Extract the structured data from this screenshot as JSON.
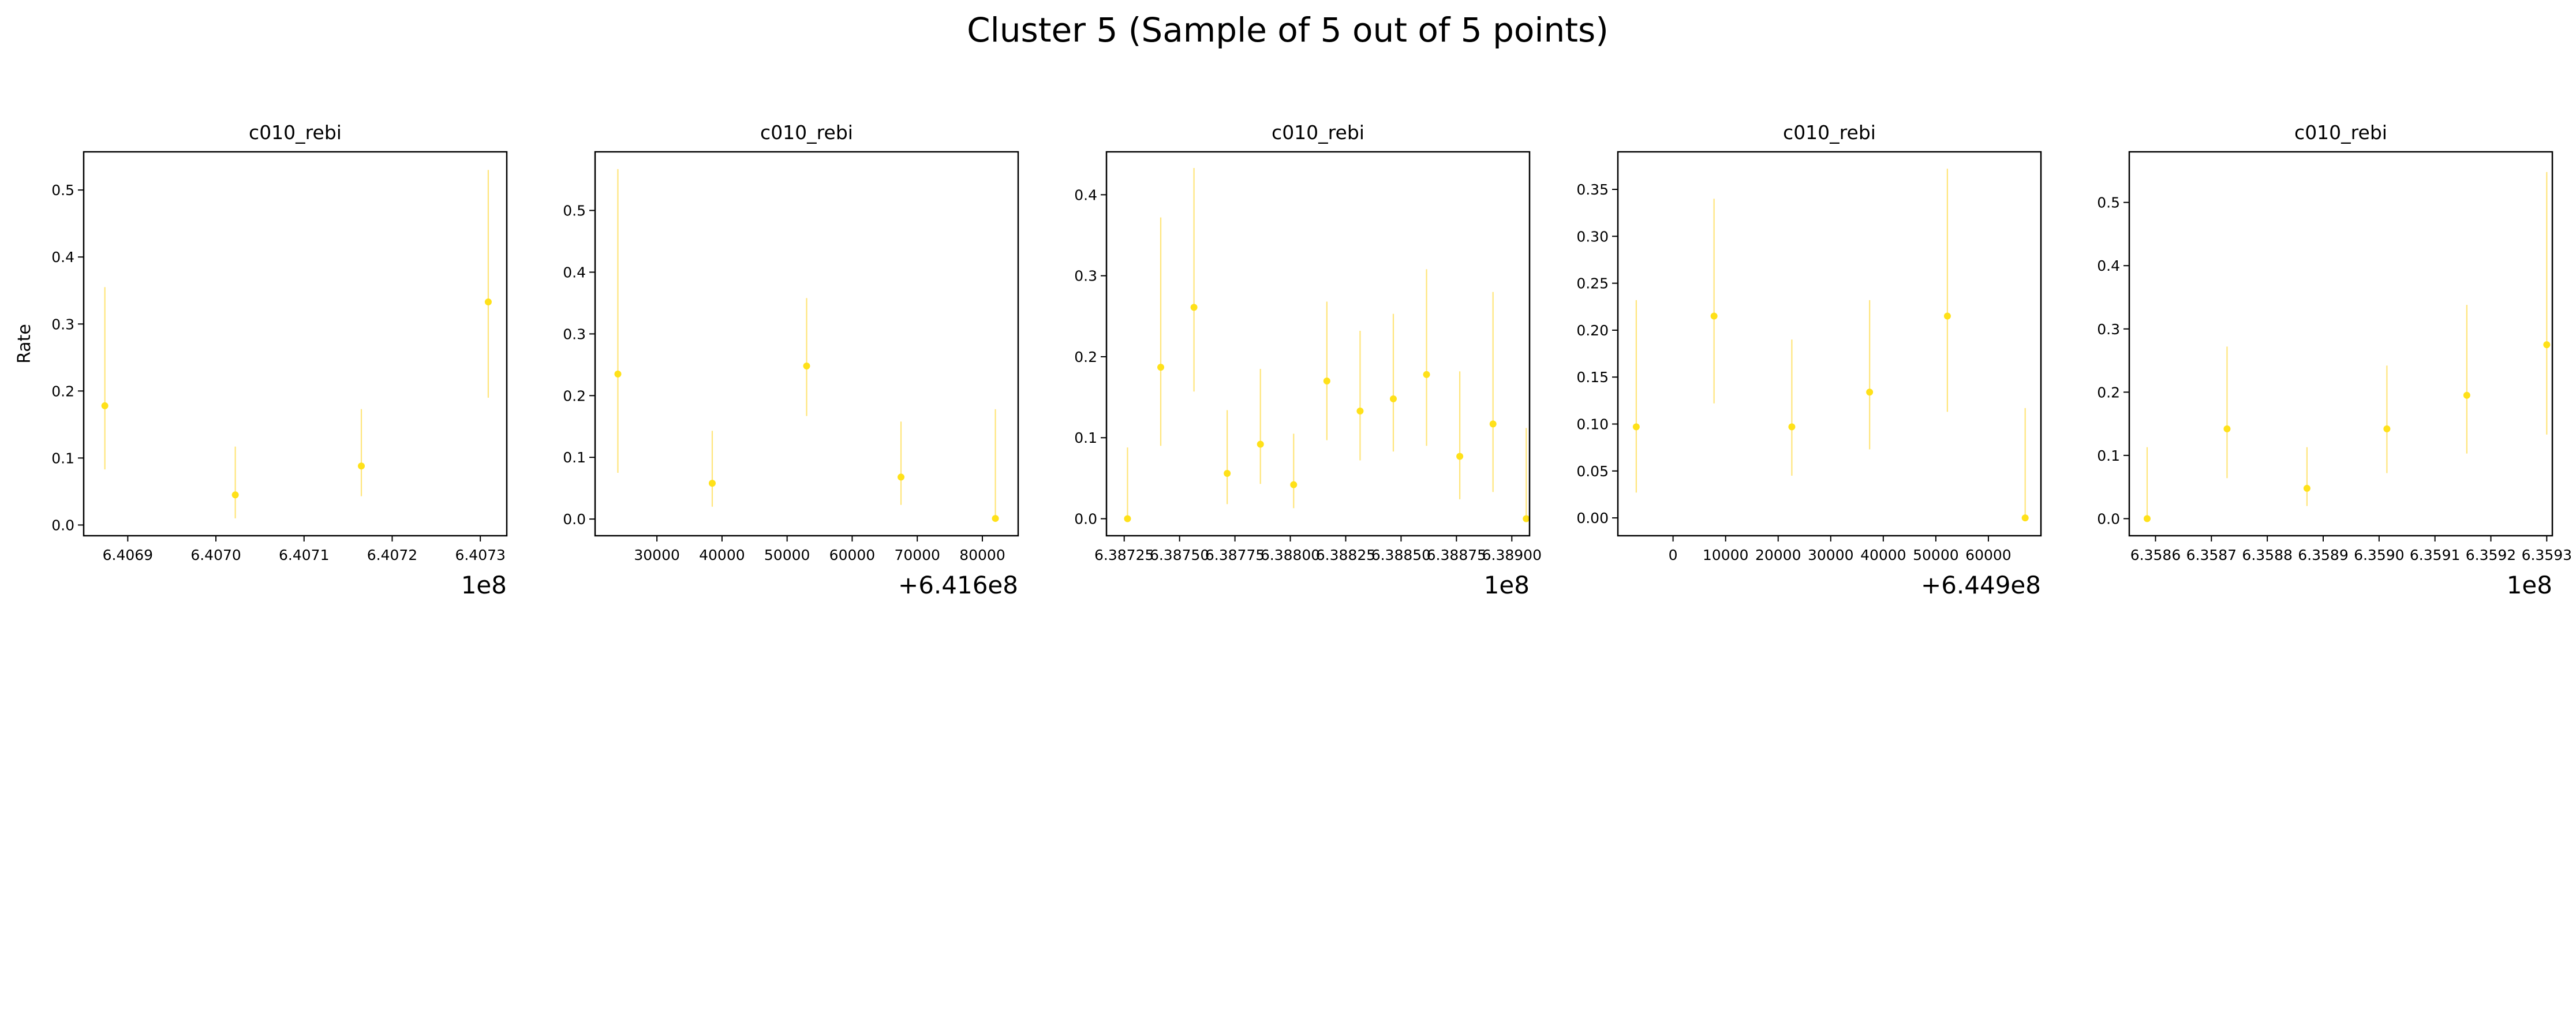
{
  "figure": {
    "title": "Cluster 5 (Sample of 5 out of 5 points)"
  },
  "colors": {
    "marker": "#ffe119",
    "errorbar": "#ffe57a",
    "axis": "#000000"
  },
  "chart_data": [
    {
      "type": "scatter",
      "title": "c010_rebi",
      "ylabel": "Rate",
      "offset_text": "1e8",
      "xlim": [
        6.40685,
        6.40733
      ],
      "ylim": [
        -0.016,
        0.557
      ],
      "xticks": [
        {
          "v": 6.4069,
          "label": "6.4069"
        },
        {
          "v": 6.407,
          "label": "6.4070"
        },
        {
          "v": 6.4071,
          "label": "6.4071"
        },
        {
          "v": 6.4072,
          "label": "6.4072"
        },
        {
          "v": 6.4073,
          "label": "6.4073"
        }
      ],
      "yticks": [
        {
          "v": 0.0,
          "label": "0.0"
        },
        {
          "v": 0.1,
          "label": "0.1"
        },
        {
          "v": 0.2,
          "label": "0.2"
        },
        {
          "v": 0.3,
          "label": "0.3"
        },
        {
          "v": 0.4,
          "label": "0.4"
        },
        {
          "v": 0.5,
          "label": "0.5"
        }
      ],
      "points": [
        {
          "x": 6.406874,
          "y": 0.178,
          "lo": 0.083,
          "hi": 0.355
        },
        {
          "x": 6.407022,
          "y": 0.045,
          "lo": 0.01,
          "hi": 0.117
        },
        {
          "x": 6.407165,
          "y": 0.088,
          "lo": 0.043,
          "hi": 0.173
        },
        {
          "x": 6.407309,
          "y": 0.333,
          "lo": 0.19,
          "hi": 0.53
        }
      ]
    },
    {
      "type": "scatter",
      "title": "c010_rebi",
      "ylabel": "",
      "offset_text": "+6.416e8",
      "xlim": [
        20500,
        85500
      ],
      "ylim": [
        -0.027,
        0.595
      ],
      "xticks": [
        {
          "v": 30000,
          "label": "30000"
        },
        {
          "v": 40000,
          "label": "40000"
        },
        {
          "v": 50000,
          "label": "50000"
        },
        {
          "v": 60000,
          "label": "60000"
        },
        {
          "v": 70000,
          "label": "70000"
        },
        {
          "v": 80000,
          "label": "80000"
        }
      ],
      "yticks": [
        {
          "v": 0.0,
          "label": "0.0"
        },
        {
          "v": 0.1,
          "label": "0.1"
        },
        {
          "v": 0.2,
          "label": "0.2"
        },
        {
          "v": 0.3,
          "label": "0.3"
        },
        {
          "v": 0.4,
          "label": "0.4"
        },
        {
          "v": 0.5,
          "label": "0.5"
        }
      ],
      "points": [
        {
          "x": 24000,
          "y": 0.235,
          "lo": 0.075,
          "hi": 0.567
        },
        {
          "x": 38500,
          "y": 0.058,
          "lo": 0.02,
          "hi": 0.143
        },
        {
          "x": 53000,
          "y": 0.248,
          "lo": 0.167,
          "hi": 0.358
        },
        {
          "x": 67500,
          "y": 0.068,
          "lo": 0.023,
          "hi": 0.158
        },
        {
          "x": 82000,
          "y": 0.001,
          "lo": 0.0,
          "hi": 0.178
        }
      ]
    },
    {
      "type": "scatter",
      "title": "c010_rebi",
      "ylabel": "",
      "offset_text": "1e8",
      "xlim": [
        6.38717,
        6.38908
      ],
      "ylim": [
        -0.021,
        0.453
      ],
      "xticks": [
        {
          "v": 6.38725,
          "label": "6.38725"
        },
        {
          "v": 6.3875,
          "label": "6.38750"
        },
        {
          "v": 6.38775,
          "label": "6.38775"
        },
        {
          "v": 6.388,
          "label": "6.38800"
        },
        {
          "v": 6.38825,
          "label": "6.38825"
        },
        {
          "v": 6.3885,
          "label": "6.38850"
        },
        {
          "v": 6.38875,
          "label": "6.38875"
        },
        {
          "v": 6.389,
          "label": "6.38900"
        }
      ],
      "yticks": [
        {
          "v": 0.0,
          "label": "0.0"
        },
        {
          "v": 0.1,
          "label": "0.1"
        },
        {
          "v": 0.2,
          "label": "0.2"
        },
        {
          "v": 0.3,
          "label": "0.3"
        },
        {
          "v": 0.4,
          "label": "0.4"
        }
      ],
      "points": [
        {
          "x": 6.387265,
          "y": 0.0,
          "lo": 0.0,
          "hi": 0.088
        },
        {
          "x": 6.387415,
          "y": 0.187,
          "lo": 0.09,
          "hi": 0.372
        },
        {
          "x": 6.387565,
          "y": 0.261,
          "lo": 0.157,
          "hi": 0.433
        },
        {
          "x": 6.387715,
          "y": 0.056,
          "lo": 0.018,
          "hi": 0.134
        },
        {
          "x": 6.387865,
          "y": 0.092,
          "lo": 0.043,
          "hi": 0.185
        },
        {
          "x": 6.388015,
          "y": 0.042,
          "lo": 0.013,
          "hi": 0.105
        },
        {
          "x": 6.388165,
          "y": 0.17,
          "lo": 0.097,
          "hi": 0.268
        },
        {
          "x": 6.388315,
          "y": 0.133,
          "lo": 0.072,
          "hi": 0.232
        },
        {
          "x": 6.388465,
          "y": 0.148,
          "lo": 0.083,
          "hi": 0.253
        },
        {
          "x": 6.388615,
          "y": 0.178,
          "lo": 0.09,
          "hi": 0.308
        },
        {
          "x": 6.388765,
          "y": 0.077,
          "lo": 0.024,
          "hi": 0.182
        },
        {
          "x": 6.388915,
          "y": 0.117,
          "lo": 0.033,
          "hi": 0.28
        },
        {
          "x": 6.389065,
          "y": 0.0,
          "lo": 0.0,
          "hi": 0.112
        }
      ]
    },
    {
      "type": "scatter",
      "title": "c010_rebi",
      "ylabel": "",
      "offset_text": "+6.449e8",
      "xlim": [
        -10500,
        70000
      ],
      "ylim": [
        -0.019,
        0.39
      ],
      "xticks": [
        {
          "v": 0,
          "label": "0"
        },
        {
          "v": 10000,
          "label": "10000"
        },
        {
          "v": 20000,
          "label": "20000"
        },
        {
          "v": 30000,
          "label": "30000"
        },
        {
          "v": 40000,
          "label": "40000"
        },
        {
          "v": 50000,
          "label": "50000"
        },
        {
          "v": 60000,
          "label": "60000"
        }
      ],
      "yticks": [
        {
          "v": 0.0,
          "label": "0.00"
        },
        {
          "v": 0.05,
          "label": "0.05"
        },
        {
          "v": 0.1,
          "label": "0.10"
        },
        {
          "v": 0.15,
          "label": "0.15"
        },
        {
          "v": 0.2,
          "label": "0.20"
        },
        {
          "v": 0.25,
          "label": "0.25"
        },
        {
          "v": 0.3,
          "label": "0.30"
        },
        {
          "v": 0.35,
          "label": "0.35"
        }
      ],
      "points": [
        {
          "x": -7000,
          "y": 0.097,
          "lo": 0.027,
          "hi": 0.232
        },
        {
          "x": 7800,
          "y": 0.215,
          "lo": 0.122,
          "hi": 0.34
        },
        {
          "x": 22600,
          "y": 0.097,
          "lo": 0.045,
          "hi": 0.19
        },
        {
          "x": 37400,
          "y": 0.134,
          "lo": 0.073,
          "hi": 0.232
        },
        {
          "x": 52200,
          "y": 0.215,
          "lo": 0.113,
          "hi": 0.372
        },
        {
          "x": 67000,
          "y": 0.0,
          "lo": 0.0,
          "hi": 0.117
        }
      ]
    },
    {
      "type": "scatter",
      "title": "c010_rebi",
      "ylabel": "",
      "offset_text": "1e8",
      "xlim": [
        6.358553,
        6.35931
      ],
      "ylim": [
        -0.027,
        0.58
      ],
      "xticks": [
        {
          "v": 6.3586,
          "label": "6.3586"
        },
        {
          "v": 6.3587,
          "label": "6.3587"
        },
        {
          "v": 6.3588,
          "label": "6.3588"
        },
        {
          "v": 6.3589,
          "label": "6.3589"
        },
        {
          "v": 6.359,
          "label": "6.3590"
        },
        {
          "v": 6.3591,
          "label": "6.3591"
        },
        {
          "v": 6.3592,
          "label": "6.3592"
        },
        {
          "v": 6.3593,
          "label": "6.3593"
        }
      ],
      "yticks": [
        {
          "v": 0.0,
          "label": "0.0"
        },
        {
          "v": 0.1,
          "label": "0.1"
        },
        {
          "v": 0.2,
          "label": "0.2"
        },
        {
          "v": 0.3,
          "label": "0.3"
        },
        {
          "v": 0.4,
          "label": "0.4"
        },
        {
          "v": 0.5,
          "label": "0.5"
        }
      ],
      "points": [
        {
          "x": 6.358585,
          "y": 0.0,
          "lo": 0.0,
          "hi": 0.113
        },
        {
          "x": 6.358728,
          "y": 0.142,
          "lo": 0.064,
          "hi": 0.272
        },
        {
          "x": 6.358871,
          "y": 0.048,
          "lo": 0.02,
          "hi": 0.113
        },
        {
          "x": 6.359014,
          "y": 0.142,
          "lo": 0.072,
          "hi": 0.242
        },
        {
          "x": 6.359157,
          "y": 0.195,
          "lo": 0.103,
          "hi": 0.338
        },
        {
          "x": 6.3593,
          "y": 0.275,
          "lo": 0.133,
          "hi": 0.548
        }
      ]
    }
  ]
}
